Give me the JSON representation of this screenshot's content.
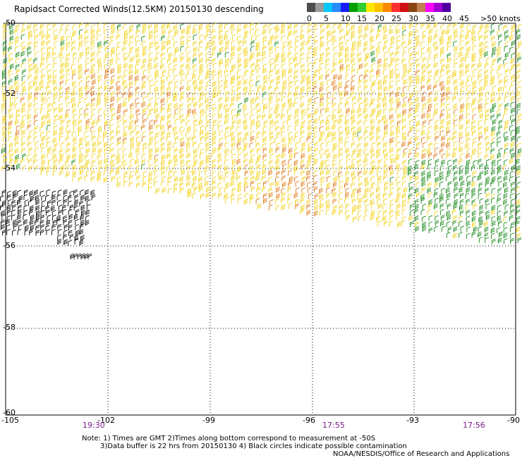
{
  "title": "Rapidsact Corrected Winds(12.5KM) 20150130 descending",
  "legend": {
    "colors": [
      "#4d4d4d",
      "#9a9a9a",
      "#00c8ff",
      "#2a8cff",
      "#1a1aff",
      "#00a000",
      "#33cc33",
      "#ffe800",
      "#ffc000",
      "#ff8a00",
      "#ff3030",
      "#d01010",
      "#8b4513",
      "#c08050",
      "#ff00ff",
      "#a000d0",
      "#5000a0"
    ],
    "labels": [
      "0",
      "5",
      "10",
      "15",
      "20",
      "25",
      "30",
      "35",
      "40",
      "45",
      ">50 knots"
    ]
  },
  "axes": {
    "x_ticks": [
      "-105",
      "-102",
      "-99",
      "-96",
      "-93",
      "-90"
    ],
    "y_ticks": [
      "-50",
      "-52",
      "-54",
      "-56",
      "-58",
      "-60"
    ],
    "times": [
      "19:30",
      "17:55",
      "17:56"
    ]
  },
  "notes": {
    "line1": "Note: 1) Times are GMT 2)Times along bottom correspond to measurement at -50S",
    "line2": "3)Data buffer is 22 hrs from 20150130 4) Black circles indicate possible contamination",
    "line3": "NOAA/NESDIS/Office of Research and Applications"
  },
  "colors": {
    "yellow": "#f2d21a",
    "orange": "#e07a1a",
    "green": "#1a8a1a",
    "black": "#000000",
    "time_label": "#7a1a8a"
  }
}
